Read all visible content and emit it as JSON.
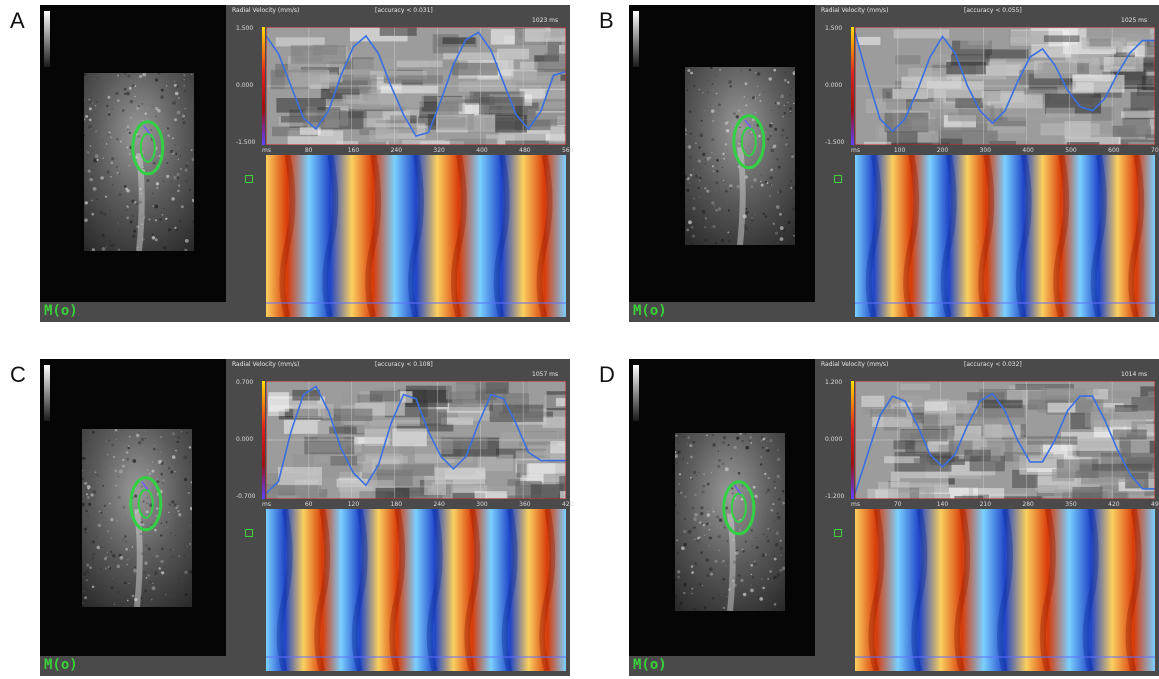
{
  "panels": [
    {
      "letter": "A",
      "title": "Radial Velocity (mm/s)",
      "accuracy": "[accuracy < 0.031]",
      "time": "1023 ms",
      "y_top": "1.500",
      "y_mid": "0.000",
      "y_bot": "-1.500",
      "x_ticks": [
        "ms",
        "80",
        "160",
        "240",
        "320",
        "400",
        "480",
        "560"
      ],
      "chart_data": {
        "type": "line",
        "x": [
          0,
          1,
          2,
          3,
          4,
          5,
          6,
          7,
          8,
          9,
          10,
          11,
          12,
          13,
          14,
          15,
          16,
          17,
          18,
          19,
          20,
          21,
          22,
          23,
          24
        ],
        "values": [
          1.4,
          0.9,
          0.0,
          -0.9,
          -1.2,
          -0.7,
          0.3,
          1.1,
          1.4,
          0.9,
          0.0,
          -0.8,
          -1.4,
          -1.3,
          -0.4,
          0.6,
          1.3,
          1.5,
          1.0,
          0.1,
          -0.8,
          -1.2,
          -0.7,
          0.3,
          0.4
        ]
      },
      "logo": "M(o)"
    },
    {
      "letter": "B",
      "title": "Radial Velocity (mm/s)",
      "accuracy": "[accuracy < 0.055]",
      "time": "1025 ms",
      "y_top": "1.500",
      "y_mid": "0.000",
      "y_bot": "-1.500",
      "x_ticks": [
        "ms",
        "100",
        "200",
        "300",
        "400",
        "500",
        "600",
        "700"
      ],
      "chart_data": {
        "type": "line",
        "x": [
          0,
          1,
          2,
          3,
          4,
          5,
          6,
          7,
          8,
          9,
          10,
          11,
          12,
          13,
          14,
          15,
          16,
          17,
          18,
          19,
          20,
          21,
          22,
          23,
          24
        ],
        "values": [
          1.3,
          0.2,
          -0.8,
          -1.1,
          -0.8,
          -0.1,
          0.7,
          1.2,
          0.8,
          0.0,
          -0.6,
          -0.9,
          -0.6,
          0.1,
          0.7,
          0.9,
          0.5,
          -0.1,
          -0.5,
          -0.6,
          -0.3,
          0.3,
          0.8,
          1.1,
          1.1
        ]
      },
      "logo": "M(o)"
    },
    {
      "letter": "C",
      "title": "Radial Velocity (mm/s)",
      "accuracy": "[accuracy < 0.108]",
      "time": "1057 ms",
      "y_top": "0.700",
      "y_mid": "0.000",
      "y_bot": "-0.700",
      "x_ticks": [
        "ms",
        "60",
        "120",
        "180",
        "240",
        "300",
        "360",
        "420"
      ],
      "chart_data": {
        "type": "line",
        "x": [
          0,
          1,
          2,
          3,
          4,
          5,
          6,
          7,
          8,
          9,
          10,
          11,
          12,
          13,
          14,
          15,
          16,
          17,
          18,
          19,
          20,
          21,
          22,
          23,
          24
        ],
        "values": [
          -0.65,
          -0.5,
          0.1,
          0.55,
          0.65,
          0.35,
          -0.1,
          -0.4,
          -0.55,
          -0.3,
          0.2,
          0.55,
          0.5,
          0.1,
          -0.2,
          -0.35,
          -0.2,
          0.2,
          0.55,
          0.5,
          0.2,
          -0.15,
          -0.25,
          -0.25,
          -0.25
        ]
      },
      "logo": "M(o)"
    },
    {
      "letter": "D",
      "title": "Radial Velocity (mm/s)",
      "accuracy": "[accuracy < 0.032]",
      "time": "1014 ms",
      "y_top": "1.200",
      "y_mid": "0.000",
      "y_bot": "-1.200",
      "x_ticks": [
        "ms",
        "70",
        "140",
        "210",
        "280",
        "350",
        "420",
        "490"
      ],
      "chart_data": {
        "type": "line",
        "x": [
          0,
          1,
          2,
          3,
          4,
          5,
          6,
          7,
          8,
          9,
          10,
          11,
          12,
          13,
          14,
          15,
          16,
          17,
          18,
          19,
          20,
          21,
          22,
          23,
          24
        ],
        "values": [
          -1.1,
          -0.3,
          0.5,
          0.9,
          0.8,
          0.3,
          -0.3,
          -0.55,
          -0.3,
          0.3,
          0.8,
          0.95,
          0.6,
          0.0,
          -0.45,
          -0.45,
          0.0,
          0.6,
          0.9,
          0.9,
          0.4,
          -0.2,
          -0.7,
          -1.0,
          -1.0
        ]
      },
      "logo": "M(o)"
    }
  ],
  "colors": {
    "frame": "#4a4a4a",
    "curve": "#3a6fe0",
    "contour": "#33d045",
    "hot": "#e85a10",
    "cold": "#2a5fd8"
  }
}
